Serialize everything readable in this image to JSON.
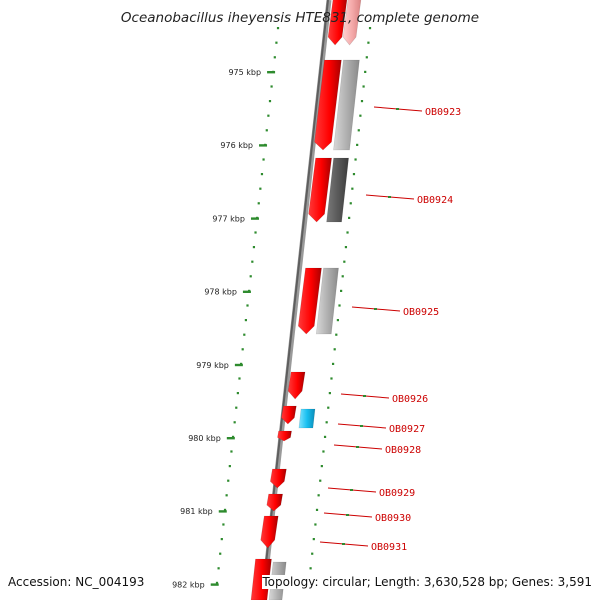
{
  "title": "Oceanobacillus iheyensis HTE831, complete genome",
  "accession": "Accession: NC_004193",
  "summary": "Topology: circular; Length: 3,630,528 bp; Genes: 3,591",
  "colors": {
    "gene_forward": "#ff0000",
    "gene_light": "#f4a9a9",
    "cds_grey": "#b0b0b0",
    "cds_dark": "#5a5a5a",
    "cds_cyan": "#19c0f0",
    "tick": "#2e8b2e",
    "label": "#cc0000",
    "backbone": "#777777"
  },
  "scale_ticks": [
    {
      "kbp": 975,
      "label": "975 kbp"
    },
    {
      "kbp": 976,
      "label": "976 kbp"
    },
    {
      "kbp": 977,
      "label": "977 kbp"
    },
    {
      "kbp": 978,
      "label": "978 kbp"
    },
    {
      "kbp": 979,
      "label": "979 kbp"
    },
    {
      "kbp": 980,
      "label": "980 kbp"
    },
    {
      "kbp": 981,
      "label": "981 kbp"
    },
    {
      "kbp": 982,
      "label": "982 kbp"
    }
  ],
  "gene_labels": [
    "OB0923",
    "OB0924",
    "OB0925",
    "OB0926",
    "OB0927",
    "OB0928",
    "OB0929",
    "OB0930",
    "OB0931"
  ]
}
